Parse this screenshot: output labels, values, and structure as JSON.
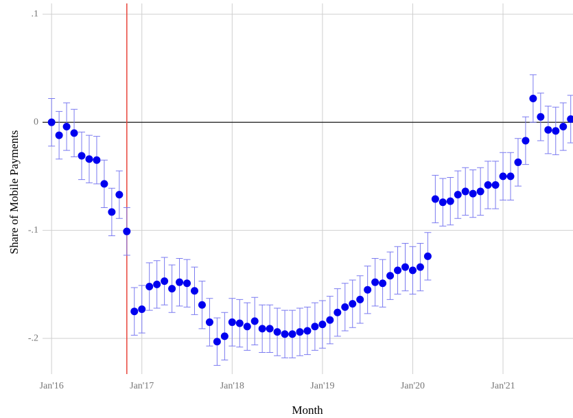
{
  "chart_data": {
    "type": "scatter",
    "xlabel": "Month",
    "ylabel": "Share of Mobile Payments",
    "x": [
      0,
      1,
      2,
      3,
      4,
      5,
      6,
      7,
      8,
      9,
      10,
      11,
      12,
      13,
      14,
      15,
      16,
      17,
      18,
      19,
      20,
      21,
      22,
      23,
      24,
      25,
      26,
      27,
      28,
      29,
      30,
      31,
      32,
      33,
      34,
      35,
      36,
      37,
      38,
      39,
      40,
      41,
      42,
      43,
      44,
      45,
      46,
      47,
      48,
      49,
      50,
      51,
      52,
      53,
      54,
      55,
      56,
      57,
      58,
      59,
      60,
      61,
      62,
      63,
      64,
      65,
      66,
      67,
      68,
      69
    ],
    "values": [
      0.0,
      -0.012,
      -0.004,
      -0.01,
      -0.031,
      -0.034,
      -0.035,
      -0.057,
      -0.083,
      -0.067,
      -0.101,
      -0.175,
      -0.173,
      -0.152,
      -0.15,
      -0.147,
      -0.154,
      -0.148,
      -0.149,
      -0.156,
      -0.169,
      -0.185,
      -0.203,
      -0.198,
      -0.185,
      -0.186,
      -0.189,
      -0.184,
      -0.191,
      -0.191,
      -0.194,
      -0.196,
      -0.196,
      -0.194,
      -0.193,
      -0.189,
      -0.187,
      -0.183,
      -0.176,
      -0.171,
      -0.168,
      -0.164,
      -0.155,
      -0.148,
      -0.149,
      -0.142,
      -0.137,
      -0.134,
      -0.137,
      -0.134,
      -0.124,
      -0.071,
      -0.074,
      -0.073,
      -0.067,
      -0.064,
      -0.066,
      -0.064,
      -0.058,
      -0.058,
      -0.05,
      -0.05,
      -0.037,
      -0.017,
      0.022,
      0.005,
      -0.007,
      -0.008,
      -0.004,
      0.003
    ],
    "errors": [
      0.022,
      0.022,
      0.022,
      0.022,
      0.022,
      0.022,
      0.022,
      0.022,
      0.022,
      0.022,
      0.022,
      0.022,
      0.022,
      0.022,
      0.022,
      0.022,
      0.022,
      0.022,
      0.022,
      0.022,
      0.022,
      0.022,
      0.022,
      0.022,
      0.022,
      0.022,
      0.022,
      0.022,
      0.022,
      0.022,
      0.022,
      0.022,
      0.022,
      0.022,
      0.022,
      0.022,
      0.022,
      0.022,
      0.022,
      0.022,
      0.022,
      0.022,
      0.022,
      0.022,
      0.022,
      0.022,
      0.022,
      0.022,
      0.022,
      0.022,
      0.022,
      0.022,
      0.022,
      0.022,
      0.022,
      0.022,
      0.022,
      0.022,
      0.022,
      0.022,
      0.022,
      0.022,
      0.022,
      0.022,
      0.022,
      0.022,
      0.022,
      0.022,
      0.022,
      0.022
    ],
    "color": "#0000ee",
    "error_color": "#7a7af0",
    "hline": 0,
    "hline_color": "#000000",
    "vline": 10,
    "vline_color": "#e8443a",
    "xlim": [
      -1.2,
      69.3
    ],
    "ylim": [
      -0.233,
      0.11
    ],
    "xticks": [
      {
        "value": 0,
        "label": "Jan'16"
      },
      {
        "value": 12,
        "label": "Jan'17"
      },
      {
        "value": 24,
        "label": "Jan'18"
      },
      {
        "value": 36,
        "label": "Jan'19"
      },
      {
        "value": 48,
        "label": "Jan'20"
      },
      {
        "value": 60,
        "label": "Jan'21"
      }
    ],
    "yticks": [
      {
        "value": 0.1,
        "label": ".1"
      },
      0,
      {
        "value": -0.1,
        "label": "-.1"
      },
      {
        "value": -0.2,
        "label": "-.2"
      }
    ],
    "grid": true
  }
}
